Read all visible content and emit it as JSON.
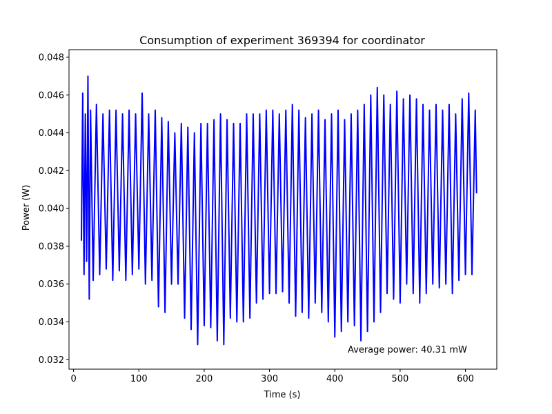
{
  "chart_data": {
    "type": "line",
    "title": "Consumption of experiment 369394 for coordinator",
    "xlabel": "Time (s)",
    "ylabel": "Power (W)",
    "xlim": [
      -7,
      648
    ],
    "ylim": [
      0.0315,
      0.0484
    ],
    "x_ticks": [
      0,
      100,
      200,
      300,
      400,
      500,
      600
    ],
    "x_tick_labels": [
      "0",
      "100",
      "200",
      "300",
      "400",
      "500",
      "600"
    ],
    "y_ticks": [
      0.032,
      0.034,
      0.036,
      0.038,
      0.04,
      0.042,
      0.044,
      0.046,
      0.048
    ],
    "y_tick_labels": [
      "0.032",
      "0.034",
      "0.036",
      "0.038",
      "0.040",
      "0.042",
      "0.044",
      "0.046",
      "0.048"
    ],
    "grid": false,
    "annotation": "Average power: 40.31 mW",
    "series": [
      {
        "color": "#0000ff",
        "x": [
          12,
          14,
          16,
          18,
          20,
          22,
          24,
          26,
          30,
          35,
          40,
          45,
          50,
          55,
          60,
          65,
          70,
          75,
          80,
          85,
          90,
          95,
          100,
          105,
          110,
          115,
          120,
          125,
          130,
          135,
          140,
          145,
          150,
          155,
          160,
          165,
          170,
          175,
          180,
          185,
          190,
          195,
          200,
          205,
          210,
          215,
          220,
          225,
          230,
          235,
          240,
          245,
          250,
          255,
          260,
          265,
          270,
          275,
          280,
          285,
          290,
          295,
          300,
          305,
          310,
          315,
          320,
          325,
          330,
          335,
          340,
          345,
          350,
          355,
          360,
          365,
          370,
          375,
          380,
          385,
          390,
          395,
          400,
          405,
          410,
          415,
          420,
          425,
          430,
          435,
          440,
          445,
          450,
          455,
          460,
          465,
          470,
          475,
          480,
          485,
          490,
          495,
          500,
          505,
          510,
          515,
          520,
          525,
          530,
          535,
          540,
          545,
          550,
          555,
          560,
          565,
          570,
          575,
          580,
          585,
          590,
          595,
          600,
          605,
          610,
          615,
          617
        ],
        "y": [
          0.0383,
          0.0461,
          0.0365,
          0.045,
          0.0372,
          0.047,
          0.0352,
          0.0452,
          0.0362,
          0.0455,
          0.0365,
          0.045,
          0.0368,
          0.0452,
          0.0362,
          0.0452,
          0.0367,
          0.045,
          0.0362,
          0.0452,
          0.0365,
          0.045,
          0.0368,
          0.0461,
          0.036,
          0.045,
          0.0362,
          0.0452,
          0.0348,
          0.0448,
          0.0345,
          0.0446,
          0.036,
          0.044,
          0.036,
          0.0445,
          0.0342,
          0.0443,
          0.0336,
          0.044,
          0.0328,
          0.0445,
          0.0338,
          0.0445,
          0.0337,
          0.0447,
          0.033,
          0.045,
          0.0328,
          0.0447,
          0.0342,
          0.0445,
          0.034,
          0.0445,
          0.034,
          0.045,
          0.0342,
          0.045,
          0.035,
          0.045,
          0.0352,
          0.0452,
          0.0355,
          0.0452,
          0.0355,
          0.045,
          0.0356,
          0.0452,
          0.035,
          0.0455,
          0.0343,
          0.0452,
          0.0345,
          0.0448,
          0.0342,
          0.045,
          0.035,
          0.0452,
          0.0345,
          0.0447,
          0.034,
          0.045,
          0.0332,
          0.0452,
          0.0335,
          0.0447,
          0.034,
          0.045,
          0.0338,
          0.0452,
          0.033,
          0.0455,
          0.0335,
          0.046,
          0.034,
          0.0464,
          0.0345,
          0.046,
          0.0355,
          0.0455,
          0.0352,
          0.0462,
          0.035,
          0.0458,
          0.036,
          0.046,
          0.0355,
          0.0458,
          0.035,
          0.0455,
          0.0355,
          0.0452,
          0.036,
          0.0455,
          0.0358,
          0.0452,
          0.036,
          0.0455,
          0.0355,
          0.045,
          0.0362,
          0.0458,
          0.0365,
          0.0461,
          0.0365,
          0.0452,
          0.0408
        ]
      }
    ]
  }
}
